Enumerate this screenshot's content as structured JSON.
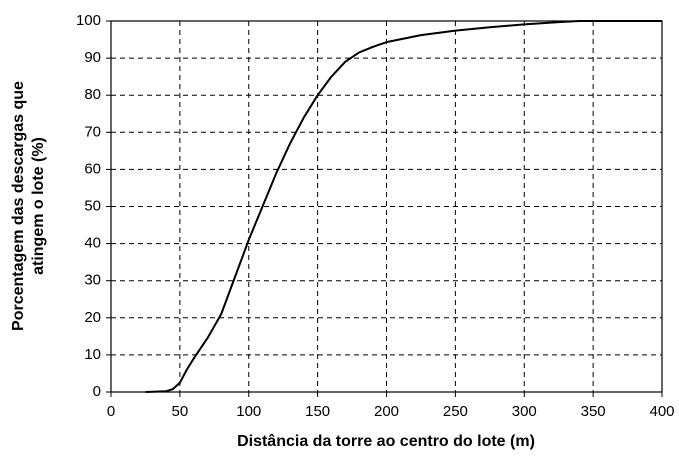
{
  "chart_data": {
    "type": "line",
    "xlabel": "Distância da torre ao centro do lote (m)",
    "ylabel": [
      "Porcentagem das descargas que",
      "atingem o lote (%)"
    ],
    "x": [
      25,
      40,
      45,
      50,
      55,
      60,
      70,
      80,
      90,
      100,
      110,
      120,
      130,
      140,
      150,
      160,
      170,
      180,
      190,
      200,
      225,
      250,
      275,
      300,
      325,
      340,
      400
    ],
    "series": [
      {
        "name": "Porcentagem",
        "color": "#000000",
        "values": [
          0,
          0.2,
          0.8,
          2.5,
          6,
          9,
          14.5,
          21,
          31,
          41,
          50,
          59,
          67,
          74,
          80,
          85,
          89,
          91.5,
          93,
          94.3,
          96.2,
          97.4,
          98.3,
          99.1,
          99.7,
          100,
          100
        ]
      }
    ],
    "xlim": [
      0,
      400
    ],
    "xticks": [
      0,
      50,
      100,
      150,
      200,
      250,
      300,
      350,
      400
    ],
    "ylim": [
      0,
      100
    ],
    "yticks": [
      0,
      10,
      20,
      30,
      40,
      50,
      60,
      70,
      80,
      90,
      100
    ],
    "grid": true
  }
}
